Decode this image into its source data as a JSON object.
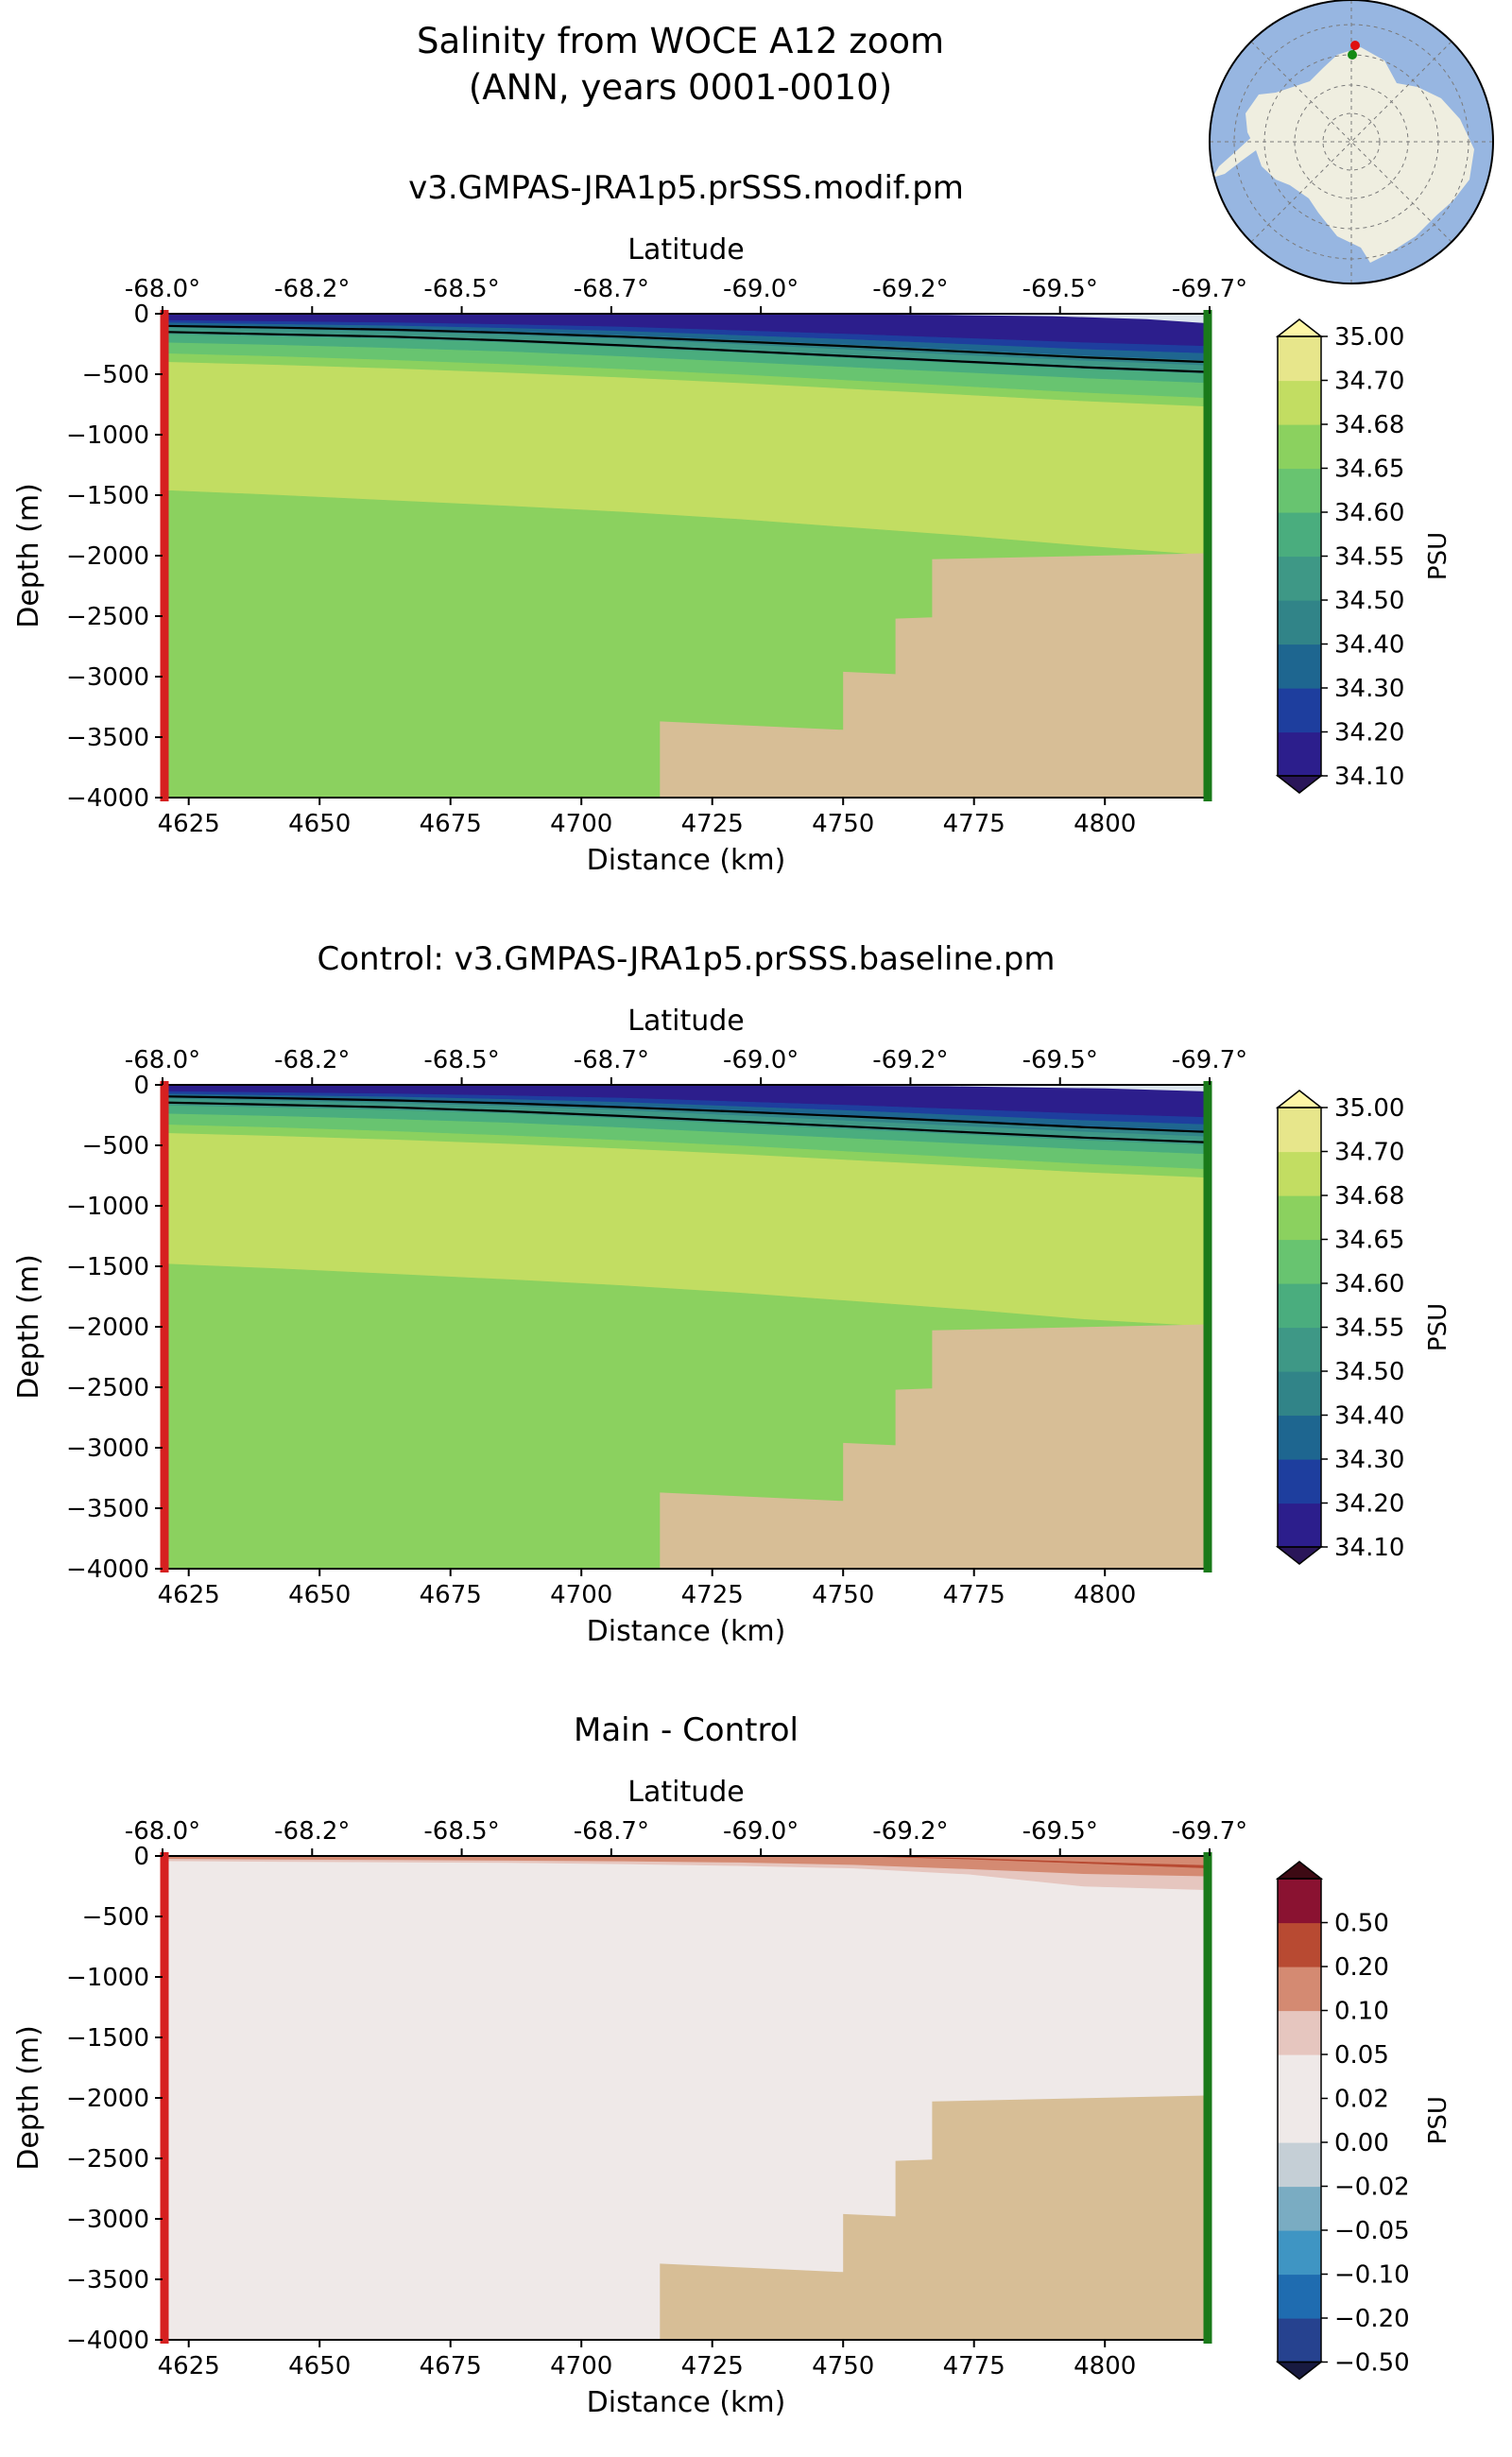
{
  "page_title": {
    "line1": "Salinity from WOCE A12 zoom",
    "line2": "(ANN, years 0001-0010)"
  },
  "colors": {
    "topography": "#d7be96",
    "start_marker": "#d62020",
    "end_marker": "#1a7a1a",
    "sea_ice": "#dde6ee"
  },
  "chart_data": [
    {
      "type": "contourf",
      "title": "v3.GMPAS-JRA1p5.prSSS.modif.pm",
      "xlabel": "Distance (km)",
      "ylabel": "Depth (m)",
      "top_axis_label": "Latitude",
      "x_ticks": [
        4625,
        4650,
        4675,
        4700,
        4725,
        4750,
        4775,
        4800
      ],
      "y_ticks": [
        0,
        -500,
        -1000,
        -1500,
        -2000,
        -2500,
        -3000,
        -3500,
        -4000
      ],
      "y_tick_labels": [
        "0",
        "−500",
        "−1000",
        "−1500",
        "−2000",
        "−2500",
        "−3000",
        "−3500",
        "−4000"
      ],
      "lat_ticks": [
        "-68.0°",
        "-68.2°",
        "-68.5°",
        "-68.7°",
        "-69.0°",
        "-69.2°",
        "-69.5°",
        "-69.7°"
      ],
      "xlim": [
        4620,
        4820
      ],
      "ylim": [
        -4000,
        0
      ],
      "colorbar": {
        "label": "PSU",
        "tick_labels": [
          "34.10",
          "34.20",
          "34.30",
          "34.40",
          "34.50",
          "34.55",
          "34.60",
          "34.65",
          "34.68",
          "34.70",
          "35.00"
        ],
        "colors": [
          "#2c1e8c",
          "#1e3e9e",
          "#1e6690",
          "#318488",
          "#3e9886",
          "#4aad7e",
          "#68c470",
          "#8bd15f",
          "#c2dd62",
          "#e7e68b"
        ],
        "under_color": "#2a1659",
        "over_color": "#fdf6a6"
      },
      "layers": [
        {
          "color": "#2c1e8c",
          "top": [
            0,
            0,
            0,
            0,
            0,
            0,
            0,
            0,
            0,
            0
          ],
          "bottom": [
            -55,
            -65,
            -75,
            -90,
            -110,
            -140,
            -170,
            -205,
            -240,
            -270
          ]
        },
        {
          "color": "#1e3e9e",
          "top": [
            -55,
            -65,
            -75,
            -90,
            -110,
            -140,
            -170,
            -205,
            -240,
            -270
          ],
          "bottom": [
            -75,
            -88,
            -100,
            -120,
            -145,
            -180,
            -215,
            -255,
            -295,
            -330
          ]
        },
        {
          "color": "#1e6690",
          "top": [
            -75,
            -88,
            -100,
            -120,
            -145,
            -180,
            -215,
            -255,
            -295,
            -330
          ],
          "bottom": [
            -95,
            -110,
            -125,
            -150,
            -180,
            -220,
            -260,
            -305,
            -350,
            -390
          ]
        },
        {
          "color": "#318488",
          "top": [
            -95,
            -110,
            -125,
            -150,
            -180,
            -220,
            -260,
            -305,
            -350,
            -390
          ],
          "bottom": [
            -115,
            -132,
            -150,
            -178,
            -212,
            -255,
            -300,
            -345,
            -390,
            -430
          ]
        },
        {
          "color": "#3e9886",
          "top": [
            -115,
            -132,
            -150,
            -178,
            -212,
            -255,
            -300,
            -345,
            -390,
            -430
          ],
          "bottom": [
            -170,
            -190,
            -210,
            -240,
            -280,
            -325,
            -370,
            -415,
            -460,
            -500
          ]
        },
        {
          "color": "#4aad7e",
          "top": [
            -170,
            -190,
            -210,
            -240,
            -280,
            -325,
            -370,
            -415,
            -460,
            -500
          ],
          "bottom": [
            -240,
            -260,
            -285,
            -315,
            -355,
            -400,
            -445,
            -490,
            -535,
            -575
          ]
        },
        {
          "color": "#68c470",
          "top": [
            -240,
            -260,
            -285,
            -315,
            -355,
            -400,
            -445,
            -490,
            -535,
            -575
          ],
          "bottom": [
            -330,
            -355,
            -385,
            -420,
            -460,
            -505,
            -555,
            -605,
            -655,
            -700
          ]
        },
        {
          "color": "#8bd15f",
          "top": [
            -330,
            -355,
            -385,
            -420,
            -460,
            -505,
            -555,
            -605,
            -655,
            -700
          ],
          "bottom": [
            -400,
            -425,
            -455,
            -490,
            -530,
            -575,
            -625,
            -675,
            -725,
            -770
          ]
        },
        {
          "color": "#c2dd62",
          "top": [
            -400,
            -425,
            -455,
            -490,
            -530,
            -575,
            -625,
            -675,
            -725,
            -770
          ],
          "bottom": [
            -1460,
            -1500,
            -1545,
            -1590,
            -1640,
            -1700,
            -1770,
            -1840,
            -1920,
            -2000
          ]
        },
        {
          "color": "#8bd15f",
          "top": [
            -1460,
            -1500,
            -1545,
            -1590,
            -1640,
            -1700,
            -1770,
            -1840,
            -1920,
            -2000
          ],
          "bottom": [
            -4000,
            -4000,
            -4000,
            -4000,
            -4000,
            -4000,
            -4000,
            -4000,
            -4000,
            -4000
          ]
        }
      ],
      "contour_lines": [
        {
          "color": "#000000",
          "values": [
            -100,
            -115,
            -132,
            -158,
            -190,
            -230,
            -270,
            -315,
            -360,
            -400
          ]
        },
        {
          "color": "#000000",
          "values": [
            -150,
            -170,
            -190,
            -222,
            -262,
            -307,
            -352,
            -398,
            -442,
            -482
          ]
        }
      ],
      "ice_wedge": {
        "x": [
          4721,
          4770,
          4790,
          4808,
          4820
        ],
        "y": [
          0,
          -10,
          -20,
          -45,
          -80
        ]
      },
      "topography": {
        "x": [
          4715,
          4715,
          4750,
          4750,
          4760,
          4760,
          4767,
          4767,
          4820
        ],
        "y": [
          -4000,
          -3370,
          -3440,
          -2960,
          -2980,
          -2520,
          -2510,
          -2030,
          -1980
        ]
      }
    },
    {
      "type": "contourf",
      "title": "Control: v3.GMPAS-JRA1p5.prSSS.baseline.pm",
      "xlabel": "Distance (km)",
      "ylabel": "Depth (m)",
      "top_axis_label": "Latitude",
      "x_ticks": [
        4625,
        4650,
        4675,
        4700,
        4725,
        4750,
        4775,
        4800
      ],
      "y_ticks": [
        0,
        -500,
        -1000,
        -1500,
        -2000,
        -2500,
        -3000,
        -3500,
        -4000
      ],
      "y_tick_labels": [
        "0",
        "−500",
        "−1000",
        "−1500",
        "−2000",
        "−2500",
        "−3000",
        "−3500",
        "−4000"
      ],
      "lat_ticks": [
        "-68.0°",
        "-68.2°",
        "-68.5°",
        "-68.7°",
        "-69.0°",
        "-69.2°",
        "-69.5°",
        "-69.7°"
      ],
      "xlim": [
        4620,
        4820
      ],
      "ylim": [
        -4000,
        0
      ],
      "colorbar": {
        "label": "PSU",
        "tick_labels": [
          "34.10",
          "34.20",
          "34.30",
          "34.40",
          "34.50",
          "34.55",
          "34.60",
          "34.65",
          "34.68",
          "34.70",
          "35.00"
        ],
        "colors": [
          "#2c1e8c",
          "#1e3e9e",
          "#1e6690",
          "#318488",
          "#3e9886",
          "#4aad7e",
          "#68c470",
          "#8bd15f",
          "#c2dd62",
          "#e7e68b"
        ],
        "under_color": "#2a1659",
        "over_color": "#fdf6a6"
      },
      "layers": [
        {
          "color": "#2c1e8c",
          "top": [
            0,
            0,
            0,
            0,
            0,
            0,
            0,
            0,
            0,
            0
          ],
          "bottom": [
            -55,
            -65,
            -75,
            -90,
            -110,
            -140,
            -170,
            -205,
            -240,
            -270
          ]
        },
        {
          "color": "#1e3e9e",
          "top": [
            -55,
            -65,
            -75,
            -90,
            -110,
            -140,
            -170,
            -205,
            -240,
            -270
          ],
          "bottom": [
            -75,
            -88,
            -100,
            -120,
            -145,
            -180,
            -215,
            -255,
            -295,
            -330
          ]
        },
        {
          "color": "#1e6690",
          "top": [
            -75,
            -88,
            -100,
            -120,
            -145,
            -180,
            -215,
            -255,
            -295,
            -330
          ],
          "bottom": [
            -95,
            -110,
            -125,
            -150,
            -180,
            -220,
            -260,
            -305,
            -350,
            -390
          ]
        },
        {
          "color": "#318488",
          "top": [
            -95,
            -110,
            -125,
            -150,
            -180,
            -220,
            -260,
            -305,
            -350,
            -390
          ],
          "bottom": [
            -115,
            -132,
            -150,
            -178,
            -212,
            -255,
            -300,
            -345,
            -390,
            -430
          ]
        },
        {
          "color": "#3e9886",
          "top": [
            -115,
            -132,
            -150,
            -178,
            -212,
            -255,
            -300,
            -345,
            -390,
            -430
          ],
          "bottom": [
            -170,
            -190,
            -210,
            -240,
            -280,
            -325,
            -370,
            -415,
            -460,
            -500
          ]
        },
        {
          "color": "#4aad7e",
          "top": [
            -170,
            -190,
            -210,
            -240,
            -280,
            -325,
            -370,
            -415,
            -460,
            -500
          ],
          "bottom": [
            -240,
            -260,
            -285,
            -315,
            -355,
            -400,
            -445,
            -490,
            -535,
            -575
          ]
        },
        {
          "color": "#68c470",
          "top": [
            -240,
            -260,
            -285,
            -315,
            -355,
            -400,
            -445,
            -490,
            -535,
            -575
          ],
          "bottom": [
            -330,
            -355,
            -385,
            -420,
            -460,
            -505,
            -555,
            -605,
            -655,
            -700
          ]
        },
        {
          "color": "#8bd15f",
          "top": [
            -330,
            -355,
            -385,
            -420,
            -460,
            -505,
            -555,
            -605,
            -655,
            -700
          ],
          "bottom": [
            -400,
            -425,
            -455,
            -490,
            -530,
            -575,
            -625,
            -675,
            -725,
            -770
          ]
        },
        {
          "color": "#c2dd62",
          "top": [
            -400,
            -425,
            -455,
            -490,
            -530,
            -575,
            -625,
            -675,
            -725,
            -770
          ],
          "bottom": [
            -1480,
            -1520,
            -1565,
            -1610,
            -1660,
            -1720,
            -1790,
            -1860,
            -1940,
            -2000
          ]
        },
        {
          "color": "#8bd15f",
          "top": [
            -1480,
            -1520,
            -1565,
            -1610,
            -1660,
            -1720,
            -1790,
            -1860,
            -1940,
            -2000
          ],
          "bottom": [
            -4000,
            -4000,
            -4000,
            -4000,
            -4000,
            -4000,
            -4000,
            -4000,
            -4000,
            -4000
          ]
        }
      ],
      "contour_lines": [
        {
          "color": "#000000",
          "values": [
            -95,
            -110,
            -128,
            -152,
            -185,
            -222,
            -262,
            -305,
            -350,
            -390
          ]
        },
        {
          "color": "#000000",
          "values": [
            -145,
            -165,
            -186,
            -218,
            -258,
            -302,
            -346,
            -392,
            -436,
            -476
          ]
        }
      ],
      "ice_wedge": {
        "x": [
          4695,
          4730,
          4770,
          4800,
          4820
        ],
        "y": [
          0,
          -5,
          -12,
          -30,
          -55
        ]
      },
      "topography": {
        "x": [
          4715,
          4715,
          4750,
          4750,
          4760,
          4760,
          4767,
          4767,
          4820
        ],
        "y": [
          -4000,
          -3370,
          -3440,
          -2960,
          -2980,
          -2520,
          -2510,
          -2030,
          -1980
        ]
      }
    },
    {
      "type": "contourf",
      "title": "Main - Control",
      "xlabel": "Distance (km)",
      "ylabel": "Depth (m)",
      "top_axis_label": "Latitude",
      "x_ticks": [
        4625,
        4650,
        4675,
        4700,
        4725,
        4750,
        4775,
        4800
      ],
      "y_ticks": [
        0,
        -500,
        -1000,
        -1500,
        -2000,
        -2500,
        -3000,
        -3500,
        -4000
      ],
      "y_tick_labels": [
        "0",
        "−500",
        "−1000",
        "−1500",
        "−2000",
        "−2500",
        "−3000",
        "−3500",
        "−4000"
      ],
      "lat_ticks": [
        "-68.0°",
        "-68.2°",
        "-68.5°",
        "-68.7°",
        "-69.0°",
        "-69.2°",
        "-69.5°",
        "-69.7°"
      ],
      "xlim": [
        4620,
        4820
      ],
      "ylim": [
        -4000,
        0
      ],
      "colorbar": {
        "label": "PSU",
        "tick_labels": [
          "−0.50",
          "−0.20",
          "−0.10",
          "−0.05",
          "−0.02",
          "0.00",
          "0.02",
          "0.05",
          "0.10",
          "0.20",
          "0.50"
        ],
        "colors": [
          "#26428f",
          "#1f6cb0",
          "#3f95c3",
          "#7aacc2",
          "#c5cfd6",
          "#efe9e8",
          "#efe9e8",
          "#e6c6bf",
          "#d48a72",
          "#b84a32",
          "#8a1231"
        ],
        "under_color": "#181a40",
        "over_color": "#3d0a14"
      },
      "layers": [
        {
          "color": "#efe9e8",
          "top": [
            0,
            0,
            0,
            0,
            0,
            0,
            0,
            0,
            0,
            0
          ],
          "bottom": [
            -4000,
            -4000,
            -4000,
            -4000,
            -4000,
            -4000,
            -4000,
            -4000,
            -4000,
            -4000
          ]
        },
        {
          "color": "#e6c6bf",
          "top": [
            0,
            0,
            0,
            0,
            0,
            0,
            0,
            0,
            0,
            0
          ],
          "bottom": [
            -40,
            -45,
            -50,
            -55,
            -65,
            -80,
            -100,
            -150,
            -250,
            -280
          ]
        },
        {
          "color": "#d48a72",
          "top": [
            0,
            0,
            0,
            0,
            0,
            0,
            0,
            0,
            0,
            0
          ],
          "bottom": [
            -15,
            -20,
            -25,
            -30,
            -35,
            -45,
            -65,
            -100,
            -140,
            -160
          ]
        },
        {
          "color": "#b84a32",
          "top": [
            0,
            0,
            0,
            0,
            0,
            0,
            0,
            -20,
            -50,
            -80
          ],
          "bottom": [
            0,
            0,
            0,
            0,
            0,
            0,
            0,
            -25,
            -60,
            -100
          ]
        }
      ],
      "contour_lines": [
        {
          "color": "#d48a72",
          "values": [
            -15,
            -20,
            -25,
            -30,
            -35,
            -45,
            -65,
            -100,
            -140,
            -160
          ]
        }
      ],
      "ice_wedge": {
        "x": [
          4820
        ],
        "y": [
          0
        ]
      },
      "topography": {
        "x": [
          4715,
          4715,
          4750,
          4750,
          4760,
          4760,
          4767,
          4767,
          4820
        ],
        "y": [
          -4000,
          -3370,
          -3440,
          -2960,
          -2980,
          -2520,
          -2510,
          -2030,
          -1980
        ]
      }
    }
  ]
}
